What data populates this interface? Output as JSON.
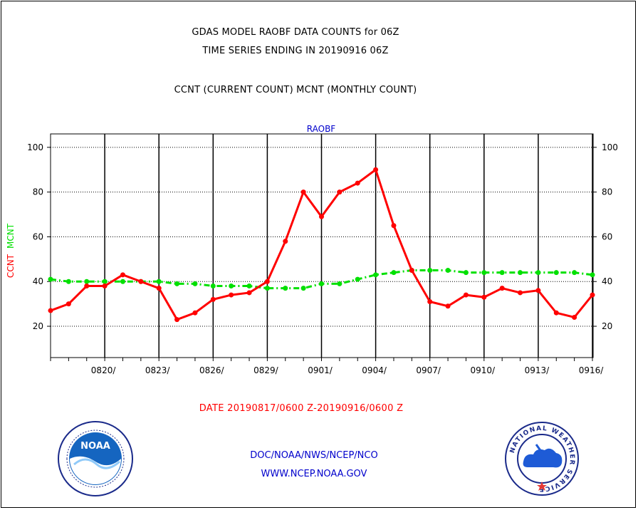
{
  "titles": {
    "line1": "GDAS MODEL RAOBF DATA COUNTS for 06Z",
    "line2": "TIME SERIES ENDING IN 20190916 06Z",
    "subtitle": "CCNT (CURRENT COUNT) MCNT (MONTHLY COUNT)"
  },
  "date_range": "DATE 20190817/0600 Z-20190916/0600 Z",
  "footer": {
    "line1": "DOC/NOAA/NWS/NCEP/NCO",
    "line2": "WWW.NCEP.NOAA.GOV"
  },
  "logos": {
    "left": {
      "icon": "noaa-logo-icon",
      "text": "NOAA"
    },
    "right": {
      "icon": "nws-logo-icon",
      "text": "NATIONAL WEATHER SERVICE"
    }
  },
  "colors": {
    "ccnt": "#ff0000",
    "mcnt": "#00e000",
    "header": "#0000cc",
    "text": "#000000"
  },
  "chart_data": {
    "type": "line",
    "title": "RAOBF",
    "ylabel_parts": [
      "CCNT",
      "MCNT"
    ],
    "ylim": [
      6,
      106
    ],
    "yticks": [
      20,
      40,
      60,
      80,
      100
    ],
    "xticks": [
      "0820/",
      "0823/",
      "0826/",
      "0829/",
      "0901/",
      "0904/",
      "0907/",
      "0910/",
      "0913/",
      "0916/"
    ],
    "grid": true,
    "series": [
      {
        "name": "CCNT",
        "values": [
          27,
          30,
          38,
          38,
          43,
          40,
          37,
          23,
          26,
          32,
          34,
          35,
          40,
          58,
          80,
          69,
          80,
          84,
          90,
          65,
          45,
          31,
          29,
          34,
          33,
          37,
          35,
          36,
          26,
          24,
          34
        ]
      },
      {
        "name": "MCNT",
        "values": [
          41,
          40,
          40,
          40,
          40,
          40,
          40,
          39,
          39,
          38,
          38,
          38,
          37,
          37,
          37,
          39,
          39,
          41,
          43,
          44,
          45,
          45,
          45,
          44,
          44,
          44,
          44,
          44,
          44,
          44,
          43
        ]
      }
    ]
  }
}
